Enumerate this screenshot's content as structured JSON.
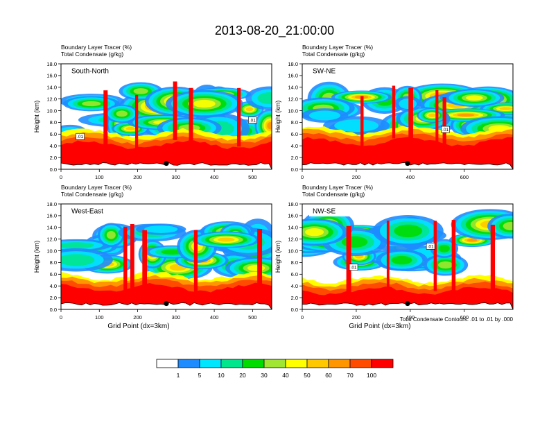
{
  "figure": {
    "title": "2013-08-20_21:00:00",
    "contour_note": "Total Condensate Contours: .01 to .01 by .000",
    "colorbar": {
      "labels": [
        "1",
        "5",
        "10",
        "20",
        "30",
        "40",
        "50",
        "60",
        "70",
        "100"
      ],
      "colors": [
        "#ffffff",
        "#1e8cff",
        "#00e6ff",
        "#00e68c",
        "#00dc00",
        "#a0e632",
        "#ffff00",
        "#ffc800",
        "#ff9600",
        "#ff4b00",
        "#ff0000"
      ]
    }
  },
  "chart_data": [
    {
      "type": "heatmap",
      "panel_label": "South-North",
      "header_line1": "Boundary Layer Tracer    (%)",
      "header_line2": "Total Condensate    (g/kg)",
      "ylabel": "Height (km)",
      "xlabel": "",
      "xlim": [
        0,
        550
      ],
      "ylim": [
        0,
        18
      ],
      "xticks": [
        "0",
        "100",
        "200",
        "300",
        "400",
        "500"
      ],
      "yticks": [
        "0.0",
        "2.0",
        "4.0",
        "6.0",
        "8.0",
        "10.0",
        "12.0",
        "14.0",
        "16.0",
        "18.0"
      ],
      "terrain_top_km": 1.0,
      "pbl_top_km": 5.0,
      "cloud_base_km": 4.5,
      "cloud_top_km": 15.0,
      "marker": {
        "x": 275,
        "y": 1.0
      },
      "contour_labels": [
        {
          "x": 50,
          "y": 5.6,
          "text": ".01"
        },
        {
          "x": 500,
          "y": 8.4,
          "text": ".01"
        }
      ]
    },
    {
      "type": "heatmap",
      "panel_label": "SW-NE",
      "header_line1": "Boundary Layer Tracer    (%)",
      "header_line2": "Total Condensate    (g/kg)",
      "ylabel": "Height (km)",
      "xlabel": "",
      "xlim": [
        0,
        780
      ],
      "ylim": [
        0,
        18
      ],
      "xticks": [
        "0",
        "200",
        "400",
        "600"
      ],
      "yticks": [
        "0.0",
        "2.0",
        "4.0",
        "6.0",
        "8.0",
        "10.0",
        "12.0",
        "14.0",
        "16.0",
        "18.0"
      ],
      "terrain_top_km": 1.0,
      "pbl_top_km": 5.5,
      "cloud_base_km": 5.0,
      "cloud_top_km": 14.5,
      "marker": {
        "x": 390,
        "y": 1.0
      },
      "contour_labels": [
        {
          "x": 530,
          "y": 6.8,
          "text": ".01"
        }
      ]
    },
    {
      "type": "heatmap",
      "panel_label": "West-East",
      "header_line1": "Boundary Layer Tracer    (%)",
      "header_line2": "Total Condensate    (g/kg)",
      "ylabel": "Height (km)",
      "xlabel": "Grid Point (dx=3km)",
      "xlim": [
        0,
        550
      ],
      "ylim": [
        0,
        18
      ],
      "xticks": [
        "0",
        "100",
        "200",
        "300",
        "400",
        "500"
      ],
      "yticks": [
        "0.0",
        "2.0",
        "4.0",
        "6.0",
        "8.0",
        "10.0",
        "12.0",
        "14.0",
        "16.0",
        "18.0"
      ],
      "terrain_top_km": 1.0,
      "pbl_top_km": 4.5,
      "cloud_base_km": 5.5,
      "cloud_top_km": 15.5,
      "marker": {
        "x": 275,
        "y": 1.0
      },
      "contour_labels": []
    },
    {
      "type": "heatmap",
      "panel_label": "NW-SE",
      "header_line1": "Boundary Layer Tracer    (%)",
      "header_line2": "Total Condensate    (g/kg)",
      "ylabel": "Height (km)",
      "xlabel": "Grid Point (dx=3km)",
      "xlim": [
        0,
        780
      ],
      "ylim": [
        0,
        18
      ],
      "xticks": [
        "0",
        "200",
        "400",
        "600"
      ],
      "yticks": [
        "0.0",
        "2.0",
        "4.0",
        "6.0",
        "8.0",
        "10.0",
        "12.0",
        "14.0",
        "16.0",
        "18.0"
      ],
      "terrain_top_km": 1.0,
      "pbl_top_km": 4.0,
      "cloud_base_km": 6.0,
      "cloud_top_km": 16.0,
      "marker": {
        "x": 390,
        "y": 1.0
      },
      "contour_labels": [
        {
          "x": 190,
          "y": 7.2,
          "text": ".01"
        },
        {
          "x": 475,
          "y": 10.8,
          "text": ".01"
        }
      ]
    }
  ]
}
